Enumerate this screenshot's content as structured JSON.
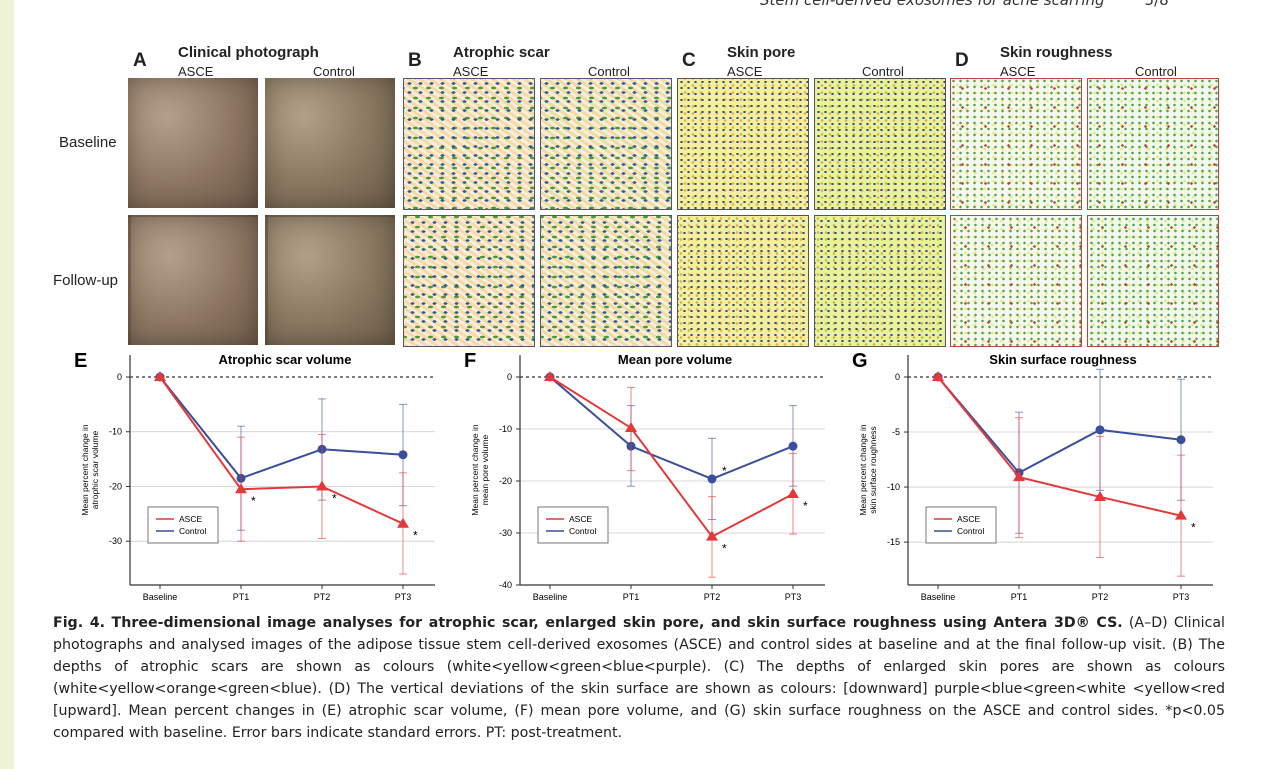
{
  "running_head": {
    "title": "Stem cell-derived exosomes for acne scarring",
    "page": "5/8"
  },
  "panels": [
    {
      "letter": "A",
      "title": "Clinical photograph",
      "left": "ASCE",
      "right": "Control"
    },
    {
      "letter": "B",
      "title": "Atrophic scar",
      "left": "ASCE",
      "right": "Control"
    },
    {
      "letter": "C",
      "title": "Skin pore",
      "left": "ASCE",
      "right": "Control"
    },
    {
      "letter": "D",
      "title": "Skin roughness",
      "left": "ASCE",
      "right": "Control"
    }
  ],
  "rows": [
    "Baseline",
    "Follow-up"
  ],
  "chart_data": [
    {
      "type": "line",
      "letter": "E",
      "title": "Atrophic scar volume",
      "ylabel": [
        "Mean percent change in",
        "atrophic scar volume"
      ],
      "categories": [
        "Baseline",
        "PT1",
        "PT2",
        "PT3"
      ],
      "ylim": [
        -38,
        4
      ],
      "yticks": [
        0,
        -10,
        -20,
        -30
      ],
      "series": [
        {
          "name": "ASCE",
          "color": "#e2393b",
          "marker": "triangle",
          "values": [
            0,
            -20.5,
            -20,
            -26.8
          ],
          "err_low": [
            0,
            -30,
            -29.5,
            -36
          ],
          "err_high": [
            0,
            -11,
            -10.5,
            -17.5
          ],
          "significant": [
            false,
            true,
            true,
            true
          ]
        },
        {
          "name": "Control",
          "color": "#3a4f9a",
          "marker": "circle",
          "values": [
            0,
            -18.5,
            -13.2,
            -14.2
          ],
          "err_low": [
            0,
            -28,
            -22.5,
            -23.5
          ],
          "err_high": [
            0,
            -9,
            -4,
            -5
          ],
          "significant": [
            false,
            false,
            false,
            false
          ]
        }
      ],
      "legend": "bottom-left",
      "grid": true
    },
    {
      "type": "line",
      "letter": "F",
      "title": "Mean pore volume",
      "ylabel": [
        "Mean percent change in",
        "mean pore volume"
      ],
      "categories": [
        "Baseline",
        "PT1",
        "PT2",
        "PT3"
      ],
      "ylim": [
        -40,
        4
      ],
      "yticks": [
        0,
        -10,
        -20,
        -30,
        -40
      ],
      "series": [
        {
          "name": "ASCE",
          "color": "#e2393b",
          "marker": "triangle",
          "values": [
            0,
            -9.8,
            -30.7,
            -22.5
          ],
          "err_low": [
            0,
            -18,
            -38.5,
            -30.2
          ],
          "err_high": [
            0,
            -2,
            -23,
            -14.7
          ],
          "significant": [
            false,
            false,
            true,
            true
          ]
        },
        {
          "name": "Control",
          "color": "#3a4f9a",
          "marker": "circle",
          "values": [
            0,
            -13.3,
            -19.6,
            -13.3
          ],
          "err_low": [
            0,
            -21,
            -27.4,
            -21
          ],
          "err_high": [
            0,
            -5.5,
            -11.8,
            -5.5
          ],
          "significant": [
            false,
            false,
            true,
            false
          ]
        }
      ],
      "legend": "bottom-left",
      "grid": true
    },
    {
      "type": "line",
      "letter": "G",
      "title": "Skin surface roughness",
      "ylabel": [
        "Mean percent change in",
        "skin surface roughness"
      ],
      "categories": [
        "Baseline",
        "PT1",
        "PT2",
        "PT3"
      ],
      "ylim": [
        -18.9,
        2
      ],
      "yticks": [
        0,
        -5,
        -10,
        -15
      ],
      "series": [
        {
          "name": "ASCE",
          "color": "#e2393b",
          "marker": "triangle",
          "values": [
            0,
            -9.1,
            -10.9,
            -12.6
          ],
          "err_low": [
            0,
            -14.6,
            -16.4,
            -18.1
          ],
          "err_high": [
            0,
            -3.7,
            -5.4,
            -7.1
          ],
          "significant": [
            false,
            false,
            false,
            true
          ]
        },
        {
          "name": "Control",
          "color": "#3a4f9a",
          "marker": "circle",
          "values": [
            0,
            -8.7,
            -4.8,
            -5.7
          ],
          "err_low": [
            0,
            -14.2,
            -10.3,
            -11.2
          ],
          "err_high": [
            0,
            -3.2,
            0.7,
            -0.2
          ],
          "significant": [
            false,
            false,
            false,
            false
          ]
        }
      ],
      "legend": "bottom-left",
      "grid": true
    }
  ],
  "caption": {
    "bold": "Fig. 4. Three-dimensional image analyses for atrophic scar, enlarged skin pore, and skin surface roughness using Antera 3D® CS.",
    "text": " (A–D) Clinical photographs and analysed images of the adipose tissue stem cell-derived exosomes (ASCE) and control sides at baseline and at the final follow-up visit. (B) The depths of atrophic scars are shown as colours (white<yellow<green<blue<purple). (C) The depths of enlarged skin pores are shown as colours (white<yellow<orange<green<blue). (D) The vertical deviations of the skin surface are shown as colours: [downward] purple<blue<green<white <yellow<red [upward]. Mean percent changes in (E) atrophic scar volume, (F) mean pore volume, and (G) skin surface roughness on the ASCE and control sides. *p<0.05 compared with baseline. Error bars indicate standard errors. PT: post-treatment."
  }
}
